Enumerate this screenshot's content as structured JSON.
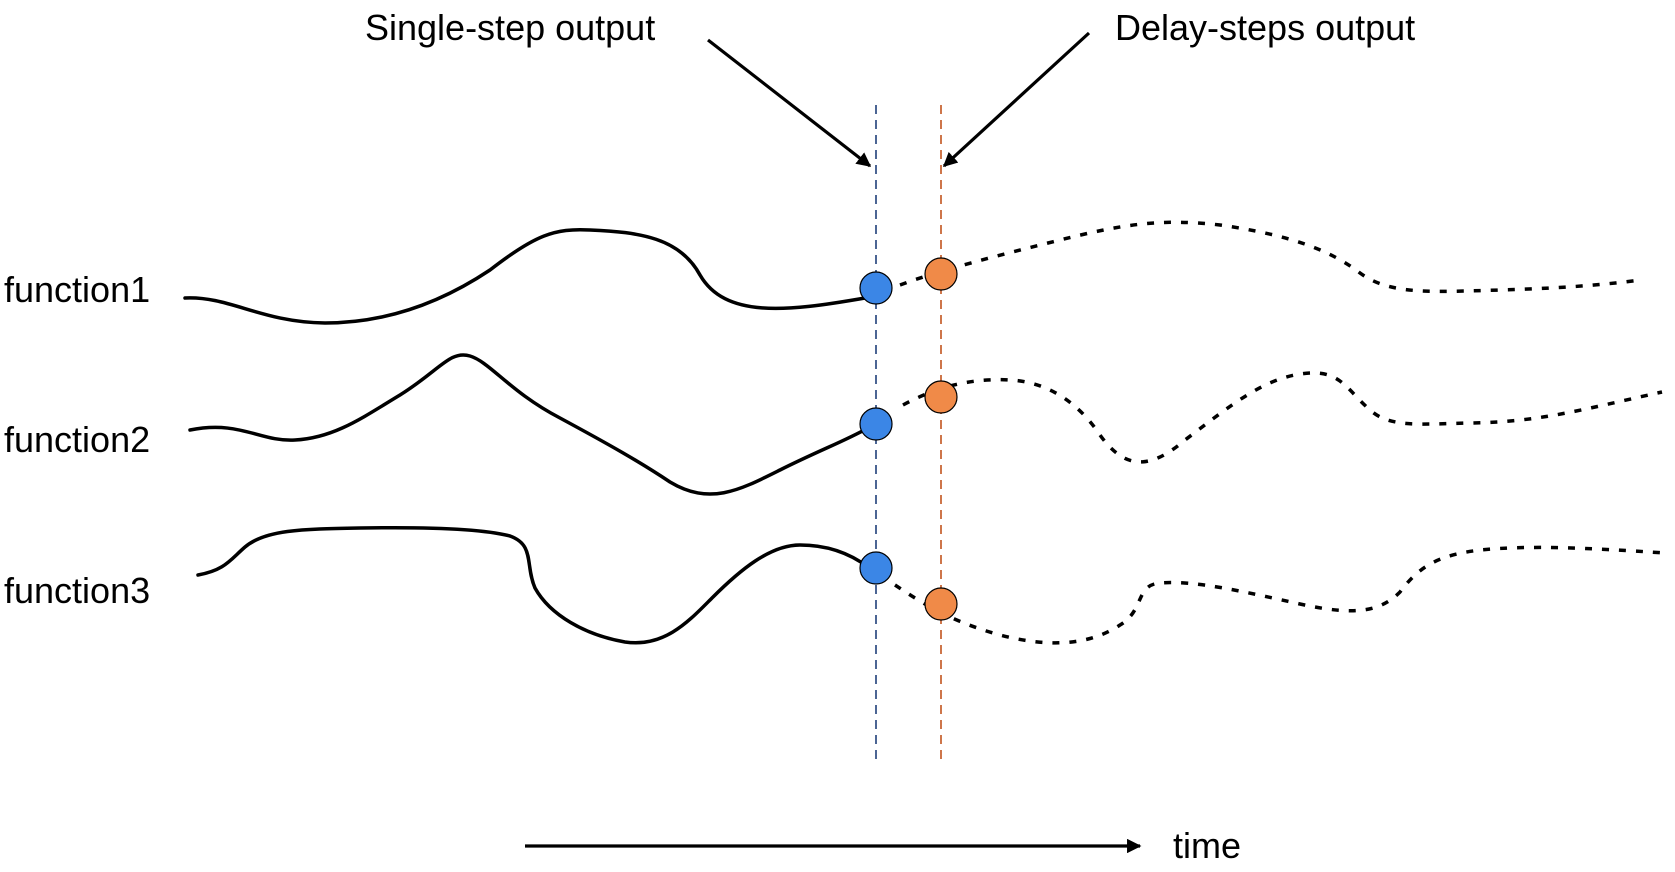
{
  "labels": {
    "single_step": "Single-step output",
    "delay_steps": "Delay-steps output",
    "time": "time"
  },
  "functions": [
    {
      "name": "function1"
    },
    {
      "name": "function2"
    },
    {
      "name": "function3"
    }
  ],
  "colors": {
    "single_step_point": "#3b86e6",
    "delay_steps_point": "#f08a48",
    "single_step_line": "#1f3f7a",
    "delay_steps_line": "#c2541e",
    "curve": "#000000"
  }
}
